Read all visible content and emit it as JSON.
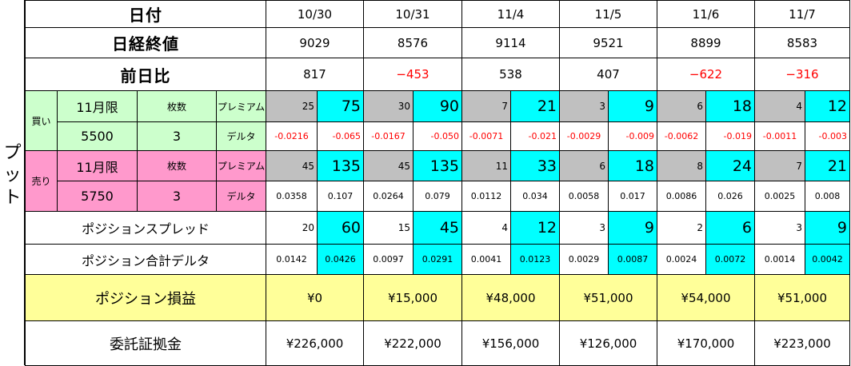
{
  "side_label": [
    "プ",
    "ッ",
    "ト"
  ],
  "dates": [
    "10/30",
    "10/31",
    "11/4",
    "11/5",
    "11/6",
    "11/7"
  ],
  "header": {
    "date_label": "日付",
    "close_label": "日経終値",
    "change_label": "前日比"
  },
  "close": [
    "9029",
    "8576",
    "9114",
    "9521",
    "8899",
    "8583"
  ],
  "change": [
    "817",
    "−453",
    "538",
    "407",
    "−622",
    "−316"
  ],
  "change_negative": [
    false,
    true,
    false,
    false,
    true,
    true
  ],
  "buy": {
    "side": "買い",
    "month": "11月限",
    "qty_label": "枚数",
    "premium_label": "プレミアム",
    "strike": "5500",
    "qty": "3",
    "delta_label": "デルタ",
    "premium_unit": [
      "25",
      "30",
      "7",
      "3",
      "6",
      "4"
    ],
    "premium_total": [
      "75",
      "90",
      "21",
      "9",
      "18",
      "12"
    ],
    "delta_unit": [
      "-0.0216",
      "-0.0167",
      "-0.0071",
      "-0.0029",
      "-0.0062",
      "-0.0011"
    ],
    "delta_total": [
      "-0.065",
      "-0.050",
      "-0.021",
      "-0.009",
      "-0.019",
      "-0.003"
    ]
  },
  "sell": {
    "side": "売り",
    "month": "11月限",
    "qty_label": "枚数",
    "premium_label": "プレミアム",
    "strike": "5750",
    "qty": "3",
    "delta_label": "デルタ",
    "premium_unit": [
      "45",
      "45",
      "11",
      "6",
      "8",
      "7"
    ],
    "premium_total": [
      "135",
      "135",
      "33",
      "18",
      "24",
      "21"
    ],
    "delta_unit": [
      "0.0358",
      "0.0264",
      "0.0112",
      "0.0058",
      "0.0086",
      "0.0025"
    ],
    "delta_total": [
      "0.107",
      "0.079",
      "0.034",
      "0.017",
      "0.026",
      "0.008"
    ]
  },
  "spread": {
    "label": "ポジションスプレッド",
    "unit": [
      "20",
      "15",
      "4",
      "3",
      "2",
      "3"
    ],
    "total": [
      "60",
      "45",
      "12",
      "9",
      "6",
      "9"
    ]
  },
  "pos_delta": {
    "label": "ポジション合計デルタ",
    "unit": [
      "0.0142",
      "0.0097",
      "0.0041",
      "0.0029",
      "0.0024",
      "0.0014"
    ],
    "total": [
      "0.0426",
      "0.0291",
      "0.0123",
      "0.0087",
      "0.0072",
      "0.0042"
    ]
  },
  "pnl": {
    "label": "ポジション損益",
    "values": [
      "¥0",
      "¥15,000",
      "¥48,000",
      "¥51,000",
      "¥54,000",
      "¥51,000"
    ]
  },
  "margin": {
    "label": "委託証拠金",
    "values": [
      "¥226,000",
      "¥222,000",
      "¥156,000",
      "¥126,000",
      "¥170,000",
      "¥223,000"
    ]
  },
  "colors": {
    "buy_bg": "#ccffcc",
    "sell_bg": "#ff99cc",
    "gray": "#c0c0c0",
    "cyan": "#00ffff",
    "yellow": "#ffff99",
    "negative": "#ff0000"
  }
}
